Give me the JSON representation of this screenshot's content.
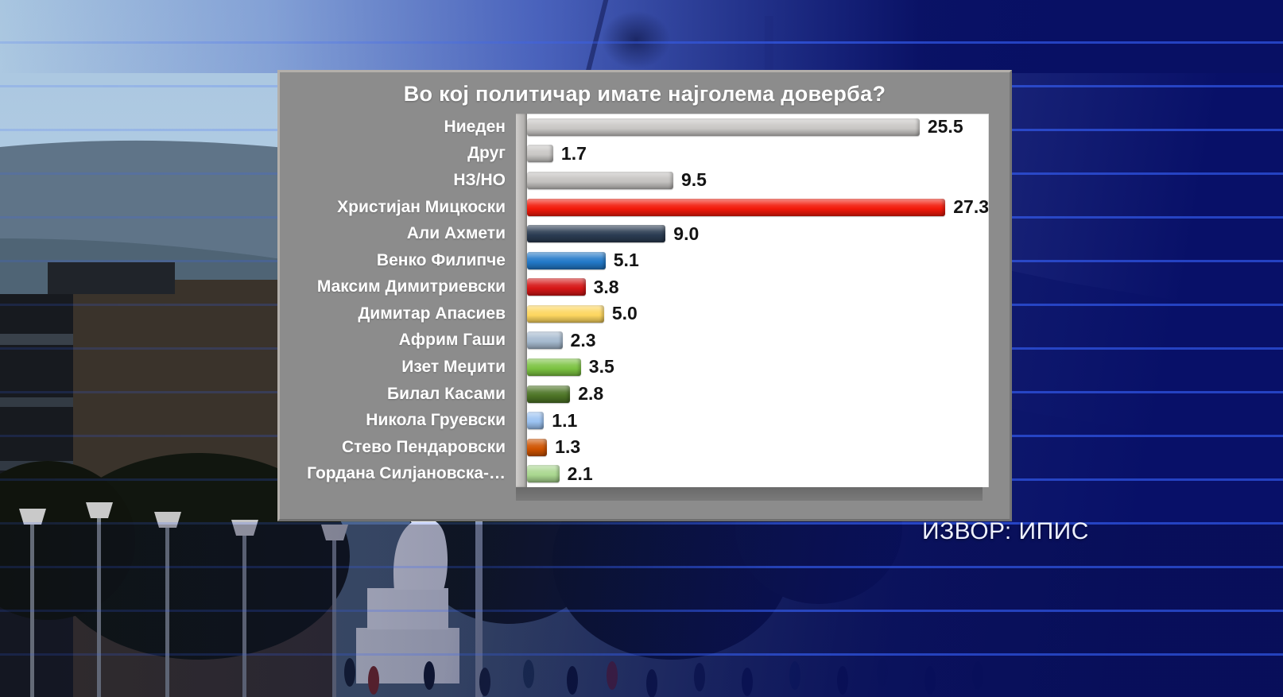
{
  "panel": {
    "title": "Во кој политичар имате најголема доверба?"
  },
  "source_label": "ИЗВОР: ИПИС",
  "colors": {
    "panel_gray": "#8c8c8c",
    "plot_background": "#ffffff",
    "overlay_blue": "#0a1470",
    "scanline_blue": "#3864ff",
    "accent_red": "#f2190a"
  },
  "chart_data": {
    "type": "bar",
    "orientation": "horizontal",
    "title": "Во кој политичар имате најголема доверба?",
    "categories": [
      "Ниеден",
      "Друг",
      "НЗ/НО",
      "Христијан Мицкоски",
      "Али Ахмети",
      "Венко Филипче",
      "Максим Димитриевски",
      "Димитар Апасиев",
      "Африм Гаши",
      "Изет Меџити",
      "Билал Касами",
      "Никола Груевски",
      "Стево Пендаровски",
      "Гордана Силјановска-…"
    ],
    "values": [
      25.5,
      1.7,
      9.5,
      27.3,
      9.0,
      5.1,
      3.8,
      5.0,
      2.3,
      3.5,
      2.8,
      1.1,
      1.3,
      2.1
    ],
    "bar_colors": [
      "#c9c7c5",
      "#c9c7c5",
      "#c4c2c0",
      "#f2190a",
      "#2b3c52",
      "#2379c8",
      "#d61717",
      "#fdd65f",
      "#a6bacf",
      "#7cc342",
      "#4d7526",
      "#9cc3f2",
      "#cf5300",
      "#a9d78f"
    ],
    "xlim": [
      0,
      30
    ],
    "value_labels_shown": true,
    "grid": false,
    "legend": false,
    "source": "ИЗВОР: ИПИС"
  }
}
